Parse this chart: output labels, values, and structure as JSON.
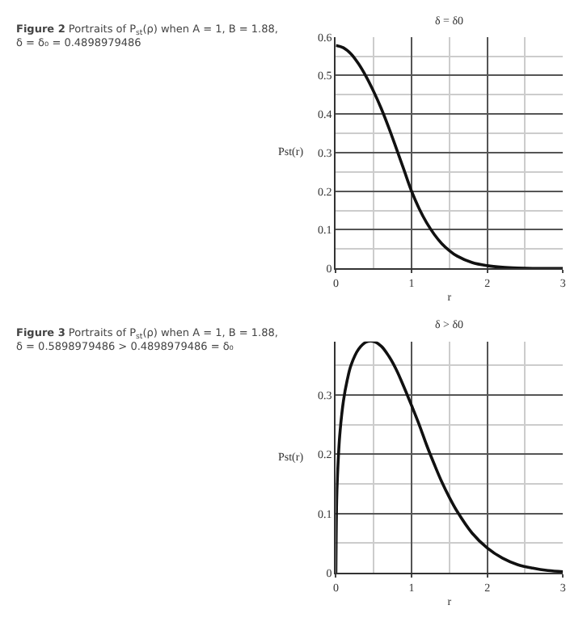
{
  "chart_data": [
    {
      "type": "line",
      "title": "Figure 2 Portraits of P$_{st}$(ρ) when A = 1, B = 1.88, δ = δ₀ = 0.4898979486",
      "subtitle": "δ = δ0",
      "xlabel": "r",
      "ylabel": "Pst(r)",
      "x": [
        0,
        0.1,
        0.2,
        0.3,
        0.4,
        0.5,
        0.6,
        0.7,
        0.8,
        0.9,
        1.0,
        1.1,
        1.2,
        1.3,
        1.4,
        1.5,
        1.6,
        1.8,
        2.0,
        2.2,
        2.4,
        2.6,
        2.8,
        3.0
      ],
      "series": [
        {
          "color": "#111111",
          "values": [
            0.578,
            0.572,
            0.556,
            0.53,
            0.497,
            0.458,
            0.414,
            0.364,
            0.31,
            0.255,
            0.2,
            0.155,
            0.118,
            0.088,
            0.064,
            0.046,
            0.032,
            0.015,
            0.007,
            0.003,
            0.001,
            0,
            0,
            0
          ]
        }
      ],
      "xlim": [
        0,
        3
      ],
      "xticks": [
        0,
        {
          "value": 0.5,
          "label": null
        },
        1,
        {
          "value": 1.5,
          "label": null
        },
        2,
        {
          "value": 2.5,
          "label": null
        },
        3
      ],
      "ylim": [
        0,
        0.6
      ],
      "yticks": [
        0,
        {
          "value": 0.05,
          "label": null
        },
        0.1,
        {
          "value": 0.15,
          "label": null
        },
        0.2,
        {
          "value": 0.25,
          "label": null
        },
        0.3,
        {
          "value": 0.35,
          "label": null
        },
        0.4,
        {
          "value": 0.45,
          "label": null
        },
        0.5,
        {
          "value": 0.55,
          "label": null
        },
        0.6
      ],
      "grid": true,
      "marker": "none",
      "line_style": "solid"
    },
    {
      "type": "line",
      "title": "Figure 3 Portraits of P$_{st}$(ρ) when A = 1, B = 1.88, δ = 0.5898979486 > 0.4898979486 = δ₀",
      "subtitle": "δ > δ0",
      "xlabel": "r",
      "ylabel": "Pst(r)",
      "x": [
        0,
        0.01,
        0.02,
        0.05,
        0.1,
        0.15,
        0.2,
        0.3,
        0.4,
        0.5,
        0.6,
        0.7,
        0.8,
        0.9,
        1.0,
        1.1,
        1.2,
        1.3,
        1.4,
        1.5,
        1.6,
        1.8,
        2.0,
        2.2,
        2.4,
        2.6,
        2.8,
        3.0
      ],
      "series": [
        {
          "color": "#111111",
          "values": [
            0,
            0.12,
            0.16,
            0.23,
            0.29,
            0.325,
            0.35,
            0.377,
            0.389,
            0.39,
            0.382,
            0.365,
            0.342,
            0.313,
            0.282,
            0.25,
            0.215,
            0.183,
            0.153,
            0.127,
            0.104,
            0.067,
            0.042,
            0.025,
            0.014,
            0.008,
            0.004,
            0.002
          ]
        }
      ],
      "xlim": [
        0,
        3
      ],
      "xticks": [
        0,
        {
          "value": 0.5,
          "label": null
        },
        1,
        {
          "value": 1.5,
          "label": null
        },
        2,
        {
          "value": 2.5,
          "label": null
        },
        3
      ],
      "ylim": [
        0,
        0.39
      ],
      "yticks": [
        0,
        {
          "value": 0.05,
          "label": null
        },
        0.1,
        {
          "value": 0.15,
          "label": null
        },
        0.2,
        {
          "value": 0.25,
          "label": null
        },
        0.3,
        {
          "value": 0.35,
          "label": null
        }
      ],
      "grid": true,
      "marker": "none",
      "line_style": "solid"
    }
  ]
}
